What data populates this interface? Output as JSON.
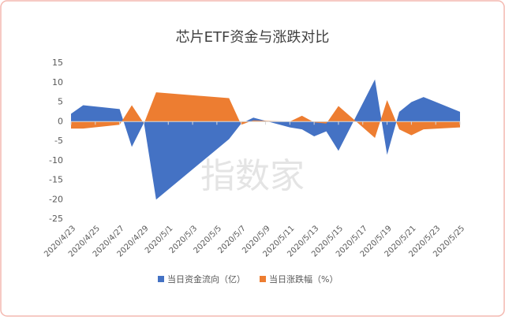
{
  "chart_data": {
    "type": "area",
    "title": "芯片ETF资金与涨跌对比",
    "watermark": "指数家",
    "x": [
      "2020/4/23",
      "2020/4/24",
      "2020/4/27",
      "2020/4/28",
      "2020/4/29",
      "2020/4/30",
      "2020/5/6",
      "2020/5/7",
      "2020/5/8",
      "2020/5/11",
      "2020/5/12",
      "2020/5/13",
      "2020/5/14",
      "2020/5/15",
      "2020/5/18",
      "2020/5/19",
      "2020/5/20",
      "2020/5/21",
      "2020/5/22",
      "2020/5/25"
    ],
    "series": [
      {
        "name": "当日资金流向（亿）",
        "color": "#4472c4",
        "values": [
          2,
          4.2,
          3.2,
          -6.5,
          -0.3,
          -20,
          -4.5,
          -0.5,
          1,
          -1.5,
          -2,
          -3.8,
          -2.5,
          -7.5,
          10.8,
          -8.5,
          2.5,
          5,
          6.3,
          2.5
        ]
      },
      {
        "name": "当日涨跌幅（%）",
        "color": "#ed7d31",
        "values": [
          -1.8,
          -1.8,
          -0.8,
          4.2,
          -0.5,
          7.5,
          6,
          -0.8,
          0.3,
          0,
          1.5,
          -0.2,
          -0.5,
          4,
          -4.2,
          5.5,
          -2,
          -3.5,
          -2,
          -1.5
        ]
      }
    ],
    "ylim": [
      -25,
      15
    ],
    "yticks": [
      -25,
      -20,
      -15,
      -10,
      -5,
      0,
      5,
      10,
      15
    ],
    "xticks": [
      "2020/4/23",
      "2020/4/25",
      "2020/4/27",
      "2020/4/29",
      "2020/5/1",
      "2020/5/3",
      "2020/5/5",
      "2020/5/7",
      "2020/5/9",
      "2020/5/11",
      "2020/5/13",
      "2020/5/15",
      "2020/5/17",
      "2020/5/19",
      "2020/5/21",
      "2020/5/23",
      "2020/5/25"
    ],
    "legend": "bottom"
  }
}
